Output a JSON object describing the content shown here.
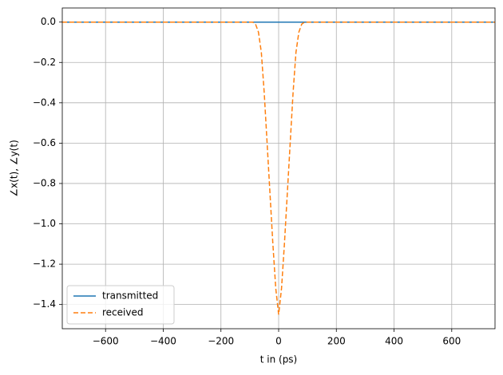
{
  "chart_data": {
    "type": "line",
    "xlabel": "t in (ps)",
    "ylabel": "∠x(t), ∠y(t)",
    "x": [
      -750,
      -100,
      -90,
      -80,
      -70,
      -60,
      -50,
      -40,
      -30,
      -20,
      -10,
      0,
      10,
      20,
      30,
      40,
      50,
      60,
      70,
      80,
      90,
      100,
      750
    ],
    "series": [
      {
        "name": "transmitted",
        "color": "#1f77b4",
        "dash": "solid",
        "values": [
          0,
          0,
          0,
          0,
          0,
          0,
          0,
          0,
          0,
          0,
          0,
          0,
          0,
          0,
          0,
          0,
          0,
          0,
          0,
          0,
          0,
          0,
          0
        ]
      },
      {
        "name": "received",
        "color": "#ff7f0e",
        "dash": "dashed",
        "values": [
          0,
          0,
          0,
          -0.01,
          -0.05,
          -0.15,
          -0.35,
          -0.6,
          -0.85,
          -1.1,
          -1.32,
          -1.45,
          -1.32,
          -1.1,
          -0.85,
          -0.6,
          -0.35,
          -0.15,
          -0.05,
          -0.01,
          0,
          0,
          0
        ]
      }
    ],
    "xlim": [
      -750,
      750
    ],
    "ylim": [
      -1.52,
      0.07
    ],
    "xticks": [
      {
        "value": -600,
        "label": "−600"
      },
      {
        "value": -400,
        "label": "−400"
      },
      {
        "value": -200,
        "label": "−200"
      },
      0,
      200,
      400,
      600
    ],
    "yticks": [
      {
        "value": 0,
        "label": "0.0"
      },
      {
        "value": -0.2,
        "label": "−0.2"
      },
      {
        "value": -0.4,
        "label": "−0.4"
      },
      {
        "value": -0.6,
        "label": "−0.6"
      },
      {
        "value": -0.8,
        "label": "−0.8"
      },
      {
        "value": -1.0,
        "label": "−1.0"
      },
      {
        "value": -1.2,
        "label": "−1.2"
      },
      {
        "value": -1.4,
        "label": "−1.4"
      }
    ],
    "grid": true,
    "legend": "lower left"
  }
}
